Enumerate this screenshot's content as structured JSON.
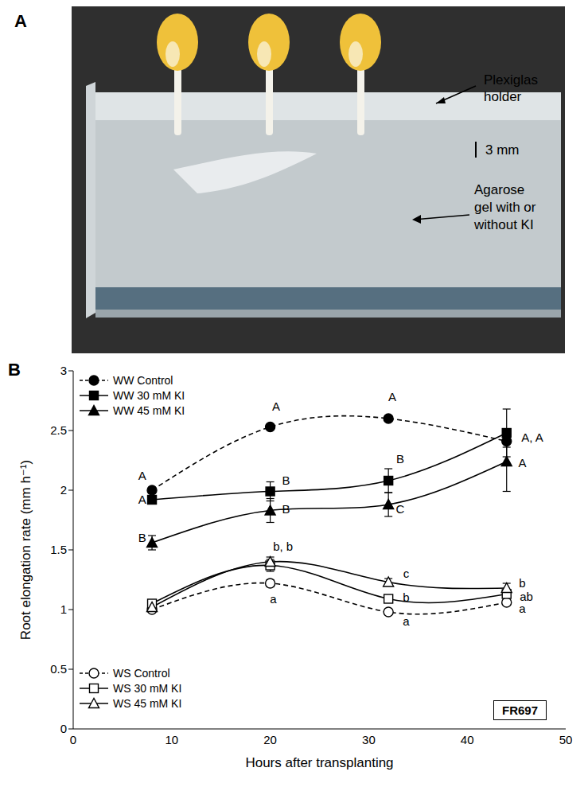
{
  "photo": {
    "label": "A",
    "callouts": [
      {
        "lines": [
          "Plexiglas",
          "holder"
        ]
      },
      {
        "lines": [
          "3 mm"
        ]
      },
      {
        "lines": [
          "Agarose",
          "gel with or",
          "without KI"
        ]
      }
    ]
  },
  "chart_data": {
    "type": "line",
    "panel_label": "B",
    "inset_label": "FR697",
    "x_label": "Hours after transplanting",
    "y_label": "Root elongation rate (mm h⁻¹)",
    "x": [
      8,
      20,
      32,
      44
    ],
    "xlim": [
      0,
      50
    ],
    "xticks": [
      0,
      10,
      20,
      30,
      40,
      50
    ],
    "ylim": [
      0,
      3
    ],
    "yticks": [
      0,
      0.5,
      1,
      1.5,
      2,
      2.5,
      3
    ],
    "legend": "upper left",
    "grid": false,
    "series": [
      {
        "name": "WW Control",
        "color": "#000000",
        "marker": "filled-circle",
        "line_style": "dashed",
        "values": [
          2.0,
          2.53,
          2.6,
          2.41
        ],
        "errors": [
          0.02,
          0.02,
          0.02,
          0.05
        ]
      },
      {
        "name": "WW 30 mM KI",
        "color": "#000000",
        "marker": "filled-square",
        "line_style": "solid",
        "values": [
          1.92,
          1.99,
          2.08,
          2.48
        ],
        "errors": [
          0.03,
          0.08,
          0.1,
          0.2
        ]
      },
      {
        "name": "WW 45 mM KI",
        "color": "#000000",
        "marker": "filled-triangle",
        "line_style": "solid",
        "values": [
          1.56,
          1.83,
          1.88,
          2.24
        ],
        "errors": [
          0.06,
          0.1,
          0.1,
          0.25
        ]
      },
      {
        "name": "WS Control",
        "color": "#000000",
        "marker": "open-circle",
        "line_style": "dashed",
        "values": [
          1.0,
          1.22,
          0.98,
          1.06
        ],
        "errors": [
          0.02,
          0.03,
          0.02,
          0.02
        ]
      },
      {
        "name": "WS 30 mM KI",
        "color": "#000000",
        "marker": "open-square",
        "line_style": "solid",
        "values": [
          1.05,
          1.37,
          1.09,
          1.13
        ],
        "errors": [
          0.03,
          0.05,
          0.03,
          0.03
        ]
      },
      {
        "name": "WS 45 mM KI",
        "color": "#000000",
        "marker": "open-triangle",
        "line_style": "solid",
        "values": [
          1.02,
          1.4,
          1.23,
          1.18
        ],
        "errors": [
          0.02,
          0.04,
          0.03,
          0.04
        ]
      }
    ],
    "annotations": [
      {
        "text": "A",
        "x": 7,
        "y": 2.12
      },
      {
        "text": "A",
        "x": 7,
        "y": 1.92
      },
      {
        "text": "B",
        "x": 7,
        "y": 1.6
      },
      {
        "text": "A",
        "x": 20.6,
        "y": 2.7
      },
      {
        "text": "B",
        "x": 21.6,
        "y": 2.08
      },
      {
        "text": "B",
        "x": 21.6,
        "y": 1.84
      },
      {
        "text": "A",
        "x": 32.4,
        "y": 2.78
      },
      {
        "text": "B",
        "x": 33.2,
        "y": 2.26
      },
      {
        "text": "C",
        "x": 33.2,
        "y": 1.84
      },
      {
        "text": "A, A",
        "x": 46.6,
        "y": 2.44
      },
      {
        "text": "A",
        "x": 45.6,
        "y": 2.23
      },
      {
        "text": "b, b",
        "x": 21.3,
        "y": 1.53
      },
      {
        "text": "a",
        "x": 20.3,
        "y": 1.09
      },
      {
        "text": "c",
        "x": 33.8,
        "y": 1.3
      },
      {
        "text": "b",
        "x": 33.8,
        "y": 1.1
      },
      {
        "text": "a",
        "x": 33.8,
        "y": 0.9
      },
      {
        "text": "b",
        "x": 45.6,
        "y": 1.22
      },
      {
        "text": "ab",
        "x": 46,
        "y": 1.11
      },
      {
        "text": "a",
        "x": 45.6,
        "y": 1.01
      }
    ]
  }
}
